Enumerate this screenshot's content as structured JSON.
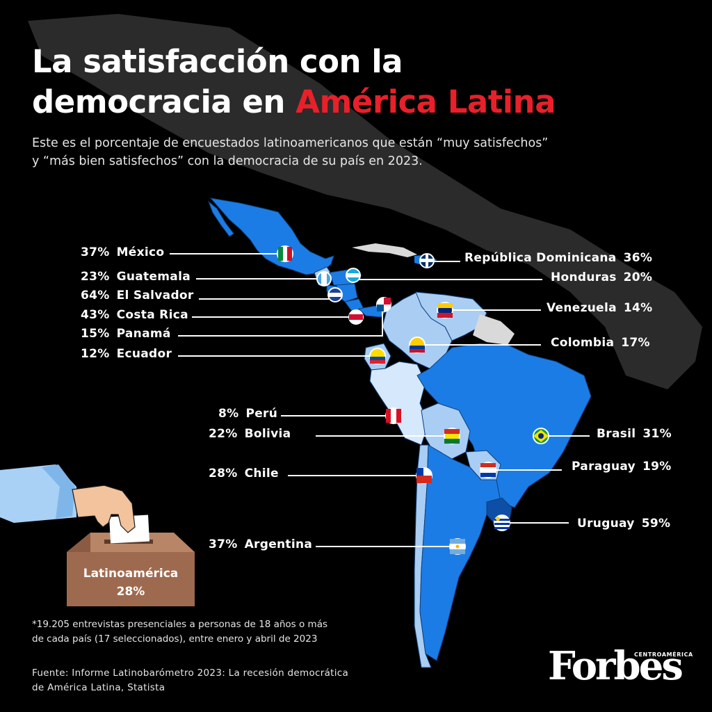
{
  "title": {
    "line1": "La satisfacción con la",
    "line2_plain": "democracia en",
    "line2_highlight": "América Latina"
  },
  "subtitle": {
    "line1": "Este es el porcentaje de encuestados latinoamericanos que están “muy satisfechos”",
    "line2": "y “más bien satisfechos” con la democracia de su país en 2023."
  },
  "colors": {
    "background": "#000000",
    "highlight": "#e8202a",
    "country_dark_blue": "#1c7ce6",
    "country_light_blue": "#a9cdf3",
    "no_data": "#d9d9d9",
    "ballot_box": "#9e6a4f"
  },
  "countries_left": [
    {
      "pct": "37%",
      "name": "México"
    },
    {
      "pct": "23%",
      "name": "Guatemala"
    },
    {
      "pct": "64%",
      "name": "El Salvador"
    },
    {
      "pct": "43%",
      "name": "Costa Rica"
    },
    {
      "pct": "15%",
      "name": "Panamá"
    },
    {
      "pct": "12%",
      "name": "Ecuador"
    },
    {
      "pct": "8%",
      "name": "Perú"
    },
    {
      "pct": "22%",
      "name": "Bolivia"
    },
    {
      "pct": "28%",
      "name": "Chile"
    },
    {
      "pct": "37%",
      "name": "Argentina"
    }
  ],
  "countries_right": [
    {
      "name": "República Dominicana",
      "pct": "36%"
    },
    {
      "name": "Honduras",
      "pct": "20%"
    },
    {
      "name": "Venezuela",
      "pct": "14%"
    },
    {
      "name": "Colombia",
      "pct": "17%"
    },
    {
      "name": "Brasil",
      "pct": "31%"
    },
    {
      "name": "Paraguay",
      "pct": "19%"
    },
    {
      "name": "Uruguay",
      "pct": "59%"
    }
  ],
  "ballot": {
    "label": "Latinoamérica",
    "value": "28%"
  },
  "footnote": {
    "line1": "*19.205 entrevistas presenciales a personas de 18 años o más",
    "line2": "de cada país (17 seleccionados), entre enero y abril de 2023"
  },
  "source": {
    "line1": "Fuente: Informe Latinobarómetro 2023: La recesión democrática",
    "line2": "de América Latina, Statista"
  },
  "brand": {
    "name": "Forbes",
    "edition": "CENTROAMÉRICA"
  }
}
